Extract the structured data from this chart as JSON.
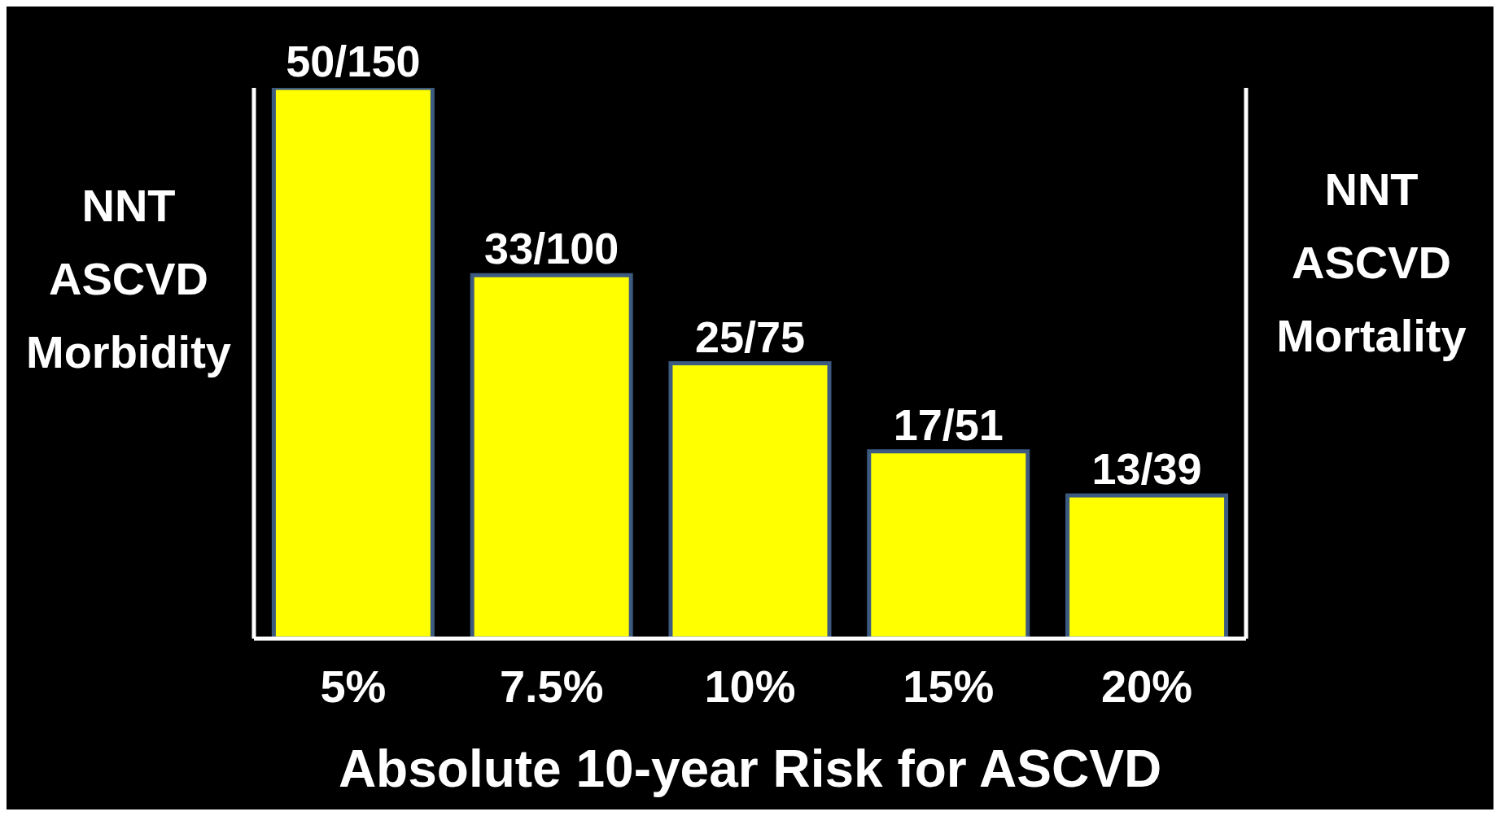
{
  "chart_data": {
    "type": "bar",
    "ylim": [
      0,
      50
    ],
    "tick_labels": "x",
    "xlabel": "Absolute 10-year Risk for ASCVD",
    "ylabel": "NNT ASCVD Morbidity",
    "y2label": "NNT ASCVD Mortality",
    "categories": [
      "5%",
      "7.5%",
      "10%",
      "15%",
      "20%"
    ],
    "values": [
      50,
      33,
      25,
      17,
      13
    ],
    "value_labels": [
      "50/150",
      "33/100",
      "25/75",
      "17/51",
      "13/39"
    ],
    "color": "#ffff00",
    "grid": false,
    "legend": false
  }
}
